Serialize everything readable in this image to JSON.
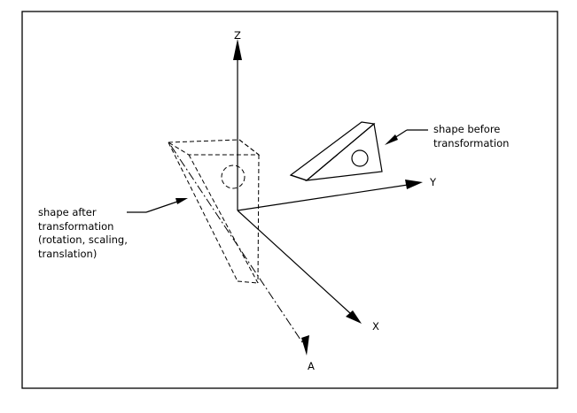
{
  "axes": {
    "z_label": "Z",
    "y_label": "Y",
    "x_label": "X",
    "a_label": "A"
  },
  "annotations": {
    "before_line1": "shape before",
    "before_line2": "transformation",
    "after_line1": "shape after",
    "after_line2": "transformation",
    "after_line3": "(rotation, scaling,",
    "after_line4": "translation)"
  },
  "colors": {
    "line": "#000000",
    "background": "#ffffff"
  }
}
